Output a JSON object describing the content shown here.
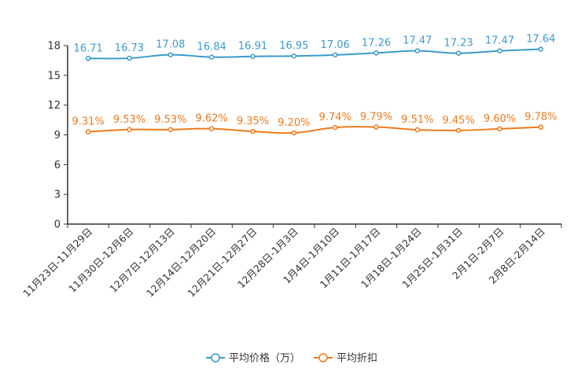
{
  "chart_data": {
    "type": "line",
    "categories": [
      "11月23日-11月29日",
      "11月30日-12月6日",
      "12月7日-12月13日",
      "12月14日-12月20日",
      "12月21日-12月27日",
      "12月28日-1月3日",
      "1月4日-1月10日",
      "1月11日-1月17日",
      "1月18日-1月24日",
      "1月25日-1月31日",
      "2月1日-2月7日",
      "2月8日-2月14日"
    ],
    "yticks": [
      "0",
      "3",
      "6",
      "9",
      "12",
      "15",
      "18"
    ],
    "ylim": [
      0,
      18
    ],
    "series": [
      {
        "name": "平均价格（万）",
        "color": "#3b9bcc",
        "values": [
          16.71,
          16.73,
          17.08,
          16.84,
          16.91,
          16.95,
          17.06,
          17.26,
          17.47,
          17.23,
          17.47,
          17.64
        ],
        "labels": [
          "16.71",
          "16.73",
          "17.08",
          "16.84",
          "16.91",
          "16.95",
          "17.06",
          "17.26",
          "17.47",
          "17.23",
          "17.47",
          "17.64"
        ]
      },
      {
        "name": "平均折扣",
        "color": "#f07a1a",
        "values": [
          9.31,
          9.53,
          9.53,
          9.62,
          9.35,
          9.2,
          9.74,
          9.79,
          9.51,
          9.45,
          9.6,
          9.78
        ],
        "labels": [
          "9.31%",
          "9.53%",
          "9.53%",
          "9.62%",
          "9.35%",
          "9.20%",
          "9.74%",
          "9.79%",
          "9.51%",
          "9.45%",
          "9.60%",
          "9.78%"
        ]
      }
    ],
    "legend_position": "bottom-center"
  }
}
